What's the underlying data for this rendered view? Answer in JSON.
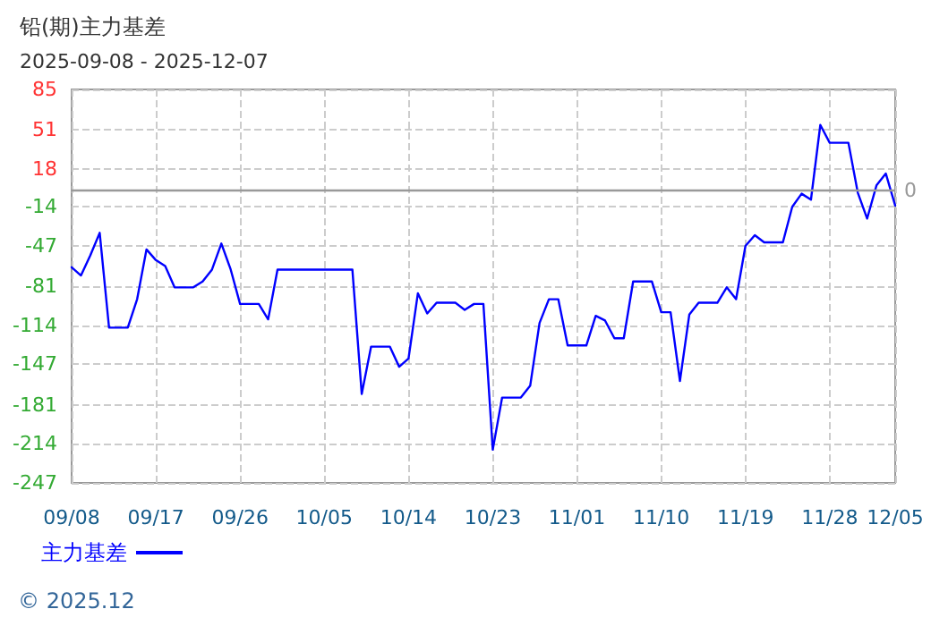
{
  "chart_data": {
    "type": "line",
    "title": "铅(期)主力基差",
    "subtitle": "2025-09-08 - 2025-12-07",
    "x": [
      "2025-09-08",
      "2025-09-09",
      "2025-09-10",
      "2025-09-11",
      "2025-09-12",
      "2025-09-14",
      "2025-09-15",
      "2025-09-16",
      "2025-09-17",
      "2025-09-18",
      "2025-09-19",
      "2025-09-21",
      "2025-09-22",
      "2025-09-23",
      "2025-09-24",
      "2025-09-25",
      "2025-09-26",
      "2025-09-28",
      "2025-09-29",
      "2025-09-30",
      "2025-10-08",
      "2025-10-09",
      "2025-10-10",
      "2025-10-12",
      "2025-10-13",
      "2025-10-14",
      "2025-10-15",
      "2025-10-16",
      "2025-10-17",
      "2025-10-19",
      "2025-10-20",
      "2025-10-21",
      "2025-10-22",
      "2025-10-23",
      "2025-10-24",
      "2025-10-26",
      "2025-10-27",
      "2025-10-28",
      "2025-10-29",
      "2025-10-30",
      "2025-10-31",
      "2025-11-02",
      "2025-11-03",
      "2025-11-04",
      "2025-11-05",
      "2025-11-06",
      "2025-11-07",
      "2025-11-09",
      "2025-11-10",
      "2025-11-11",
      "2025-11-12",
      "2025-11-13",
      "2025-11-14",
      "2025-11-16",
      "2025-11-17",
      "2025-11-18",
      "2025-11-19",
      "2025-11-20",
      "2025-11-21",
      "2025-11-23",
      "2025-11-24",
      "2025-11-25",
      "2025-11-26",
      "2025-11-27",
      "2025-11-28",
      "2025-11-30",
      "2025-12-01",
      "2025-12-02",
      "2025-12-03",
      "2025-12-04",
      "2025-12-05"
    ],
    "series": [
      {
        "name": "主力基差",
        "color": "#0000ff",
        "values": [
          -65,
          -72,
          -55,
          -36,
          -116,
          -116,
          -92,
          -50,
          -59,
          -64,
          -82,
          -82,
          -77,
          -67,
          -45,
          -67,
          -96,
          -96,
          -109,
          -67,
          -67,
          -172,
          -132,
          -132,
          -149,
          -142,
          -87,
          -104,
          -95,
          -95,
          -101,
          -96,
          -96,
          -219,
          -175,
          -175,
          -165,
          -112,
          -92,
          -92,
          -131,
          -131,
          -106,
          -110,
          -125,
          -125,
          -77,
          -77,
          -103,
          -103,
          -161,
          -105,
          -95,
          -95,
          -82,
          -92,
          -47,
          -38,
          -44,
          -44,
          -14,
          -3,
          -8,
          55,
          40,
          40,
          -2,
          -24,
          4,
          14,
          -13
        ]
      }
    ],
    "xlim": [
      "2025-09-08",
      "2025-12-05"
    ],
    "xticks": [
      {
        "value": "2025-09-08",
        "label": "09/08"
      },
      {
        "value": "2025-09-17",
        "label": "09/17"
      },
      {
        "value": "2025-09-26",
        "label": "09/26"
      },
      {
        "value": "2025-10-05",
        "label": "10/05"
      },
      {
        "value": "2025-10-14",
        "label": "10/14"
      },
      {
        "value": "2025-10-23",
        "label": "10/23"
      },
      {
        "value": "2025-11-01",
        "label": "11/01"
      },
      {
        "value": "2025-11-10",
        "label": "11/10"
      },
      {
        "value": "2025-11-19",
        "label": "11/19"
      },
      {
        "value": "2025-11-28",
        "label": "11/28"
      },
      {
        "value": "2025-12-05",
        "label": "12/05"
      }
    ],
    "ylim": [
      -247,
      85
    ],
    "yticks": [
      -247,
      -214,
      -181,
      -147,
      -114,
      -81,
      -47,
      -14,
      18,
      51,
      85
    ],
    "ref_lines": [
      {
        "axis": "y",
        "value": 0,
        "label": "0",
        "color": "#999999"
      }
    ],
    "grid": true,
    "legend": "bottom left",
    "marker": "none",
    "line_style": "solid",
    "annotations": [
      "© 2025.12"
    ]
  }
}
